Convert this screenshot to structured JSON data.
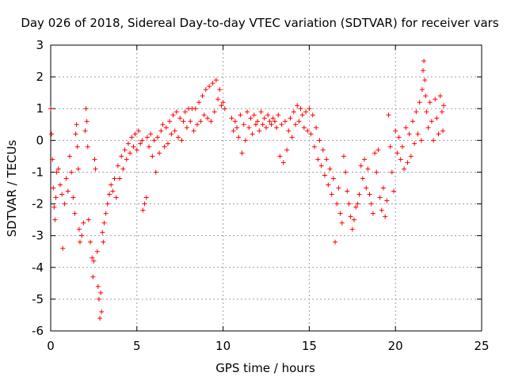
{
  "chart_data": {
    "type": "scatter",
    "title": "Day 026 of 2018, Sidereal Day-to-day VTEC variation (SDTVAR) for receiver vars",
    "xlabel": "GPS time / hours",
    "ylabel": "SDTVAR / TECUs",
    "xlim": [
      0,
      25
    ],
    "ylim": [
      -6,
      3
    ],
    "xticks": [
      0,
      5,
      10,
      15,
      20,
      25
    ],
    "yticks": [
      -6,
      -5,
      -4,
      -3,
      -2,
      -1,
      0,
      1,
      2,
      3
    ],
    "xtick_labels": [
      "0",
      "5",
      "10",
      "15",
      "20",
      "25"
    ],
    "ytick_labels": [
      "-6",
      "-5",
      "-4",
      "-3",
      "-2",
      "-1",
      "0",
      "1",
      "2",
      "3"
    ],
    "grid": true,
    "marker": "+",
    "color": "#ff0000",
    "series": [
      {
        "name": "SDTVAR",
        "points": [
          [
            0.0,
            1.0
          ],
          [
            0.05,
            0.2
          ],
          [
            0.1,
            -0.6
          ],
          [
            0.15,
            -1.5
          ],
          [
            0.2,
            -2.1
          ],
          [
            0.25,
            -2.5
          ],
          [
            0.3,
            -1.8
          ],
          [
            0.35,
            -1.0
          ],
          [
            0.45,
            -0.9
          ],
          [
            0.55,
            -1.4
          ],
          [
            0.65,
            -1.7
          ],
          [
            0.7,
            -3.4
          ],
          [
            0.8,
            -2.0
          ],
          [
            0.9,
            -1.2
          ],
          [
            1.0,
            -1.6
          ],
          [
            1.1,
            -0.5
          ],
          [
            1.2,
            -1.0
          ],
          [
            1.3,
            -1.8
          ],
          [
            1.4,
            -2.3
          ],
          [
            1.45,
            0.2
          ],
          [
            1.5,
            0.5
          ],
          [
            1.55,
            -0.2
          ],
          [
            1.6,
            -0.9
          ],
          [
            1.65,
            -2.8
          ],
          [
            1.7,
            -3.2
          ],
          [
            1.8,
            -3.0
          ],
          [
            1.9,
            -2.6
          ],
          [
            2.0,
            0.3
          ],
          [
            2.05,
            1.0
          ],
          [
            2.1,
            0.6
          ],
          [
            2.15,
            -0.2
          ],
          [
            2.2,
            -2.5
          ],
          [
            2.3,
            -3.2
          ],
          [
            2.4,
            -3.7
          ],
          [
            2.45,
            -4.3
          ],
          [
            2.5,
            -3.8
          ],
          [
            2.55,
            -0.6
          ],
          [
            2.6,
            -0.9
          ],
          [
            2.7,
            -3.5
          ],
          [
            2.75,
            -4.6
          ],
          [
            2.8,
            -5.0
          ],
          [
            2.85,
            -5.6
          ],
          [
            2.9,
            -4.8
          ],
          [
            2.95,
            -5.4
          ],
          [
            3.0,
            -2.9
          ],
          [
            3.05,
            -3.2
          ],
          [
            3.1,
            -2.6
          ],
          [
            3.2,
            -2.3
          ],
          [
            3.3,
            -2.0
          ],
          [
            3.4,
            -1.7
          ],
          [
            3.5,
            -1.4
          ],
          [
            3.6,
            -1.6
          ],
          [
            3.7,
            -1.2
          ],
          [
            3.8,
            -1.8
          ],
          [
            3.9,
            -0.8
          ],
          [
            4.0,
            -1.2
          ],
          [
            4.1,
            -0.5
          ],
          [
            4.2,
            -0.9
          ],
          [
            4.3,
            -0.3
          ],
          [
            4.4,
            -0.6
          ],
          [
            4.5,
            -0.1
          ],
          [
            4.6,
            -0.4
          ],
          [
            4.7,
            0.1
          ],
          [
            4.8,
            -0.2
          ],
          [
            4.9,
            0.2
          ],
          [
            5.0,
            -0.3
          ],
          [
            5.1,
            0.3
          ],
          [
            5.2,
            -0.1
          ],
          [
            5.3,
            0.0
          ],
          [
            5.35,
            -2.2
          ],
          [
            5.45,
            -2.0
          ],
          [
            5.55,
            -1.8
          ],
          [
            5.6,
            0.1
          ],
          [
            5.7,
            -0.2
          ],
          [
            5.8,
            0.2
          ],
          [
            5.9,
            -0.5
          ],
          [
            6.0,
            0.0
          ],
          [
            6.1,
            -1.0
          ],
          [
            6.2,
            0.1
          ],
          [
            6.3,
            -0.4
          ],
          [
            6.4,
            0.3
          ],
          [
            6.5,
            0.5
          ],
          [
            6.6,
            -0.2
          ],
          [
            6.7,
            0.4
          ],
          [
            6.8,
            -0.1
          ],
          [
            6.9,
            0.6
          ],
          [
            7.0,
            0.2
          ],
          [
            7.1,
            0.8
          ],
          [
            7.2,
            0.3
          ],
          [
            7.3,
            0.9
          ],
          [
            7.4,
            0.1
          ],
          [
            7.5,
            0.7
          ],
          [
            7.6,
            0.0
          ],
          [
            7.7,
            0.6
          ],
          [
            7.8,
            0.9
          ],
          [
            7.9,
            0.4
          ],
          [
            8.0,
            1.0
          ],
          [
            8.1,
            0.6
          ],
          [
            8.2,
            1.0
          ],
          [
            8.3,
            0.3
          ],
          [
            8.4,
            1.0
          ],
          [
            8.5,
            0.5
          ],
          [
            8.6,
            1.2
          ],
          [
            8.7,
            0.6
          ],
          [
            8.8,
            1.4
          ],
          [
            8.9,
            0.8
          ],
          [
            9.0,
            1.6
          ],
          [
            9.1,
            0.7
          ],
          [
            9.2,
            1.7
          ],
          [
            9.3,
            0.6
          ],
          [
            9.4,
            1.8
          ],
          [
            9.5,
            0.9
          ],
          [
            9.6,
            1.9
          ],
          [
            9.7,
            1.3
          ],
          [
            9.8,
            1.6
          ],
          [
            9.9,
            1.1
          ],
          [
            10.0,
            1.2
          ],
          [
            10.1,
            1.0
          ],
          [
            10.5,
            0.7
          ],
          [
            10.6,
            0.3
          ],
          [
            10.7,
            0.6
          ],
          [
            10.8,
            0.4
          ],
          [
            10.9,
            0.1
          ],
          [
            11.0,
            0.8
          ],
          [
            11.1,
            -0.4
          ],
          [
            11.2,
            0.5
          ],
          [
            11.3,
            0.0
          ],
          [
            11.4,
            0.9
          ],
          [
            11.5,
            0.4
          ],
          [
            11.6,
            0.7
          ],
          [
            11.7,
            0.2
          ],
          [
            11.8,
            0.8
          ],
          [
            11.9,
            0.5
          ],
          [
            12.0,
            0.6
          ],
          [
            12.1,
            0.3
          ],
          [
            12.2,
            0.9
          ],
          [
            12.3,
            0.5
          ],
          [
            12.4,
            0.7
          ],
          [
            12.5,
            0.4
          ],
          [
            12.6,
            0.8
          ],
          [
            12.7,
            0.6
          ],
          [
            12.8,
            0.5
          ],
          [
            12.9,
            0.7
          ],
          [
            13.0,
            0.6
          ],
          [
            13.1,
            0.4
          ],
          [
            13.2,
            0.8
          ],
          [
            13.3,
            -0.5
          ],
          [
            13.4,
            0.5
          ],
          [
            13.5,
            -0.7
          ],
          [
            13.6,
            0.6
          ],
          [
            13.7,
            -0.3
          ],
          [
            13.8,
            0.3
          ],
          [
            13.9,
            0.7
          ],
          [
            14.0,
            0.1
          ],
          [
            14.1,
            0.9
          ],
          [
            14.2,
            0.5
          ],
          [
            14.3,
            1.1
          ],
          [
            14.4,
            0.6
          ],
          [
            14.5,
            1.0
          ],
          [
            14.6,
            0.8
          ],
          [
            14.7,
            0.4
          ],
          [
            14.8,
            0.9
          ],
          [
            14.9,
            0.3
          ],
          [
            15.0,
            1.0
          ],
          [
            15.1,
            0.2
          ],
          [
            15.2,
            0.8
          ],
          [
            15.3,
            -0.2
          ],
          [
            15.4,
            0.4
          ],
          [
            15.5,
            -0.6
          ],
          [
            15.6,
            0.0
          ],
          [
            15.7,
            -0.8
          ],
          [
            15.8,
            -0.3
          ],
          [
            15.9,
            -1.1
          ],
          [
            16.0,
            -0.6
          ],
          [
            16.1,
            -1.4
          ],
          [
            16.2,
            -0.9
          ],
          [
            16.3,
            -1.7
          ],
          [
            16.4,
            -1.2
          ],
          [
            16.5,
            -3.2
          ],
          [
            16.6,
            -2.0
          ],
          [
            16.7,
            -1.5
          ],
          [
            16.8,
            -2.3
          ],
          [
            16.9,
            -2.6
          ],
          [
            17.0,
            -0.5
          ],
          [
            17.1,
            -1.0
          ],
          [
            17.2,
            -1.6
          ],
          [
            17.3,
            -2.0
          ],
          [
            17.4,
            -2.4
          ],
          [
            17.5,
            -2.8
          ],
          [
            17.6,
            -2.5
          ],
          [
            17.7,
            -2.1
          ],
          [
            17.8,
            -2.0
          ],
          [
            17.9,
            -1.7
          ],
          [
            18.0,
            -0.8
          ],
          [
            18.1,
            -1.2
          ],
          [
            18.2,
            -0.6
          ],
          [
            18.3,
            -1.5
          ],
          [
            18.4,
            -0.9
          ],
          [
            18.5,
            -1.7
          ],
          [
            18.6,
            -2.0
          ],
          [
            18.7,
            -2.3
          ],
          [
            18.8,
            -0.4
          ],
          [
            18.9,
            -1.0
          ],
          [
            19.0,
            -0.3
          ],
          [
            19.1,
            -1.8
          ],
          [
            19.2,
            -2.2
          ],
          [
            19.3,
            -1.5
          ],
          [
            19.4,
            -2.4
          ],
          [
            19.5,
            -1.9
          ],
          [
            19.6,
            0.8
          ],
          [
            19.7,
            -0.2
          ],
          [
            19.8,
            -1.0
          ],
          [
            19.9,
            -1.6
          ],
          [
            20.0,
            0.3
          ],
          [
            20.1,
            -0.4
          ],
          [
            20.2,
            0.1
          ],
          [
            20.3,
            -0.6
          ],
          [
            20.4,
            -0.2
          ],
          [
            20.5,
            -0.9
          ],
          [
            20.6,
            0.4
          ],
          [
            20.7,
            -0.7
          ],
          [
            20.8,
            0.2
          ],
          [
            20.9,
            -0.5
          ],
          [
            21.0,
            0.6
          ],
          [
            21.1,
            -0.1
          ],
          [
            21.2,
            0.9
          ],
          [
            21.3,
            0.2
          ],
          [
            21.4,
            1.2
          ],
          [
            21.5,
            0.0
          ],
          [
            21.55,
            1.6
          ],
          [
            21.6,
            2.2
          ],
          [
            21.65,
            2.5
          ],
          [
            21.7,
            1.9
          ],
          [
            21.75,
            1.4
          ],
          [
            21.8,
            0.9
          ],
          [
            21.9,
            0.4
          ],
          [
            22.0,
            1.2
          ],
          [
            22.1,
            0.6
          ],
          [
            22.2,
            0.0
          ],
          [
            22.3,
            1.3
          ],
          [
            22.4,
            0.7
          ],
          [
            22.5,
            0.2
          ],
          [
            22.6,
            1.4
          ],
          [
            22.7,
            0.9
          ],
          [
            22.75,
            0.3
          ],
          [
            22.8,
            1.1
          ]
        ]
      }
    ]
  }
}
